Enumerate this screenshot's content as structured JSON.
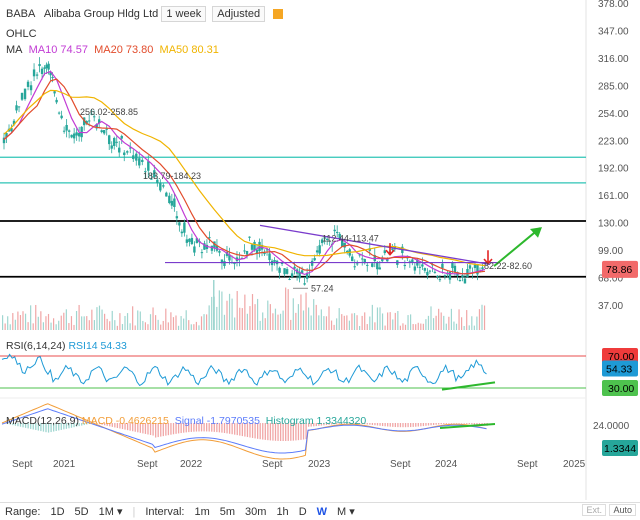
{
  "header": {
    "symbol": "BABA",
    "name": "Alibaba Group Hldg Ltd",
    "interval": "1 week",
    "adjust": "Adjusted",
    "ohlc_label": "OHLC",
    "ma_label": "MA",
    "ma10": "MA10 74.57",
    "ma20": "MA20 73.80",
    "ma50": "MA50 80.31"
  },
  "colors": {
    "candle": "#26a69a",
    "ma10": "#c23bd4",
    "ma20": "#e24c2c",
    "ma50": "#f0b400",
    "hline": "#2ec4b6",
    "rsi": "#1e9ad6",
    "macd": "#f29d38",
    "signal": "#5c7cfa",
    "trend_green": "#2db82d",
    "arrow_red": "#e32424",
    "price_tag": "#f26a6a"
  },
  "rsi": {
    "title": "RSI(6,14,24)",
    "series_label": "RSI14 54.33",
    "upper": "70.00",
    "lower": "30.00",
    "value": "54.33"
  },
  "macd": {
    "title": "MACD(12,26,9)",
    "macd_label": "MACD -0.4626215",
    "signal_label": "Signal -1.7970535",
    "hist_label": "Histogram 1.3344320",
    "value": "1.3344",
    "axis_label": "24.0000"
  },
  "annotations": {
    "a1": "256.02-258.85",
    "a2": "183.79-184.23",
    "a3": "112.44-113.47",
    "a4": "82.22-82.60",
    "a5": "57.24"
  },
  "last_price": "78.86",
  "bottom": {
    "range_label": "Range:",
    "ranges": [
      "1D",
      "5D",
      "1M"
    ],
    "interval_label": "Interval:",
    "intervals": [
      "1m",
      "5m",
      "30m",
      "1h",
      "D",
      "W",
      "M"
    ],
    "active_interval": "W",
    "ext": "Ext.",
    "auto": "Auto"
  },
  "chart_data": {
    "type": "candlestick",
    "price_axis": [
      "378.00",
      "347.00",
      "316.00",
      "285.00",
      "254.00",
      "223.00",
      "192.00",
      "161.00",
      "130.00",
      "99.00",
      "68.00",
      "37.00"
    ],
    "x_axis": [
      "Sept",
      "2021",
      "Sept",
      "2022",
      "Sept",
      "2023",
      "Sept",
      "2024",
      "Sept",
      "2025"
    ],
    "price_path": [
      [
        0,
        225
      ],
      [
        0.5,
        240
      ],
      [
        1,
        262
      ],
      [
        1.6,
        288
      ],
      [
        2.2,
        300
      ],
      [
        2.7,
        310
      ],
      [
        3.1,
        296
      ],
      [
        3.5,
        272
      ],
      [
        4,
        245
      ],
      [
        4.5,
        230
      ],
      [
        5,
        224
      ],
      [
        5.5,
        244
      ],
      [
        6,
        252
      ],
      [
        6.5,
        240
      ],
      [
        7,
        228
      ],
      [
        7.5,
        220
      ],
      [
        8,
        216
      ],
      [
        8.6,
        208
      ],
      [
        9.2,
        196
      ],
      [
        9.8,
        190
      ],
      [
        10.4,
        176
      ],
      [
        11,
        160
      ],
      [
        11.5,
        140
      ],
      [
        12,
        120
      ],
      [
        12.5,
        108
      ],
      [
        13,
        100
      ],
      [
        13.5,
        105
      ],
      [
        14,
        102
      ],
      [
        14.5,
        94
      ],
      [
        15,
        88
      ],
      [
        15.5,
        86
      ],
      [
        16,
        98
      ],
      [
        16.5,
        110
      ],
      [
        17,
        103
      ],
      [
        17.5,
        93
      ],
      [
        18,
        88
      ],
      [
        18.5,
        82
      ],
      [
        19,
        76
      ],
      [
        19.5,
        70
      ],
      [
        20,
        72
      ],
      [
        20.5,
        86
      ],
      [
        21,
        99
      ],
      [
        21.5,
        112
      ],
      [
        22,
        118
      ],
      [
        22.5,
        106
      ],
      [
        23,
        95
      ],
      [
        23.5,
        90
      ],
      [
        24,
        94
      ],
      [
        24.5,
        88
      ],
      [
        25,
        90
      ],
      [
        25.5,
        92
      ],
      [
        26,
        96
      ],
      [
        26.5,
        92
      ],
      [
        27,
        90
      ],
      [
        27.5,
        84
      ],
      [
        28,
        80
      ],
      [
        28.5,
        75
      ],
      [
        29,
        72
      ],
      [
        29.5,
        74
      ],
      [
        30,
        74
      ],
      [
        30.5,
        72
      ],
      [
        31,
        76
      ],
      [
        31.5,
        80
      ],
      [
        32,
        79
      ]
    ],
    "ylim": [
      37,
      378
    ],
    "hlines": [
      205,
      176,
      133,
      70
    ],
    "volume_bars": 190,
    "rsi_ylim": [
      30,
      70
    ],
    "notes": [
      "256.02-258.85",
      "183.79-184.23",
      "112.44-113.47",
      "82.22-82.60",
      "57.24"
    ]
  }
}
